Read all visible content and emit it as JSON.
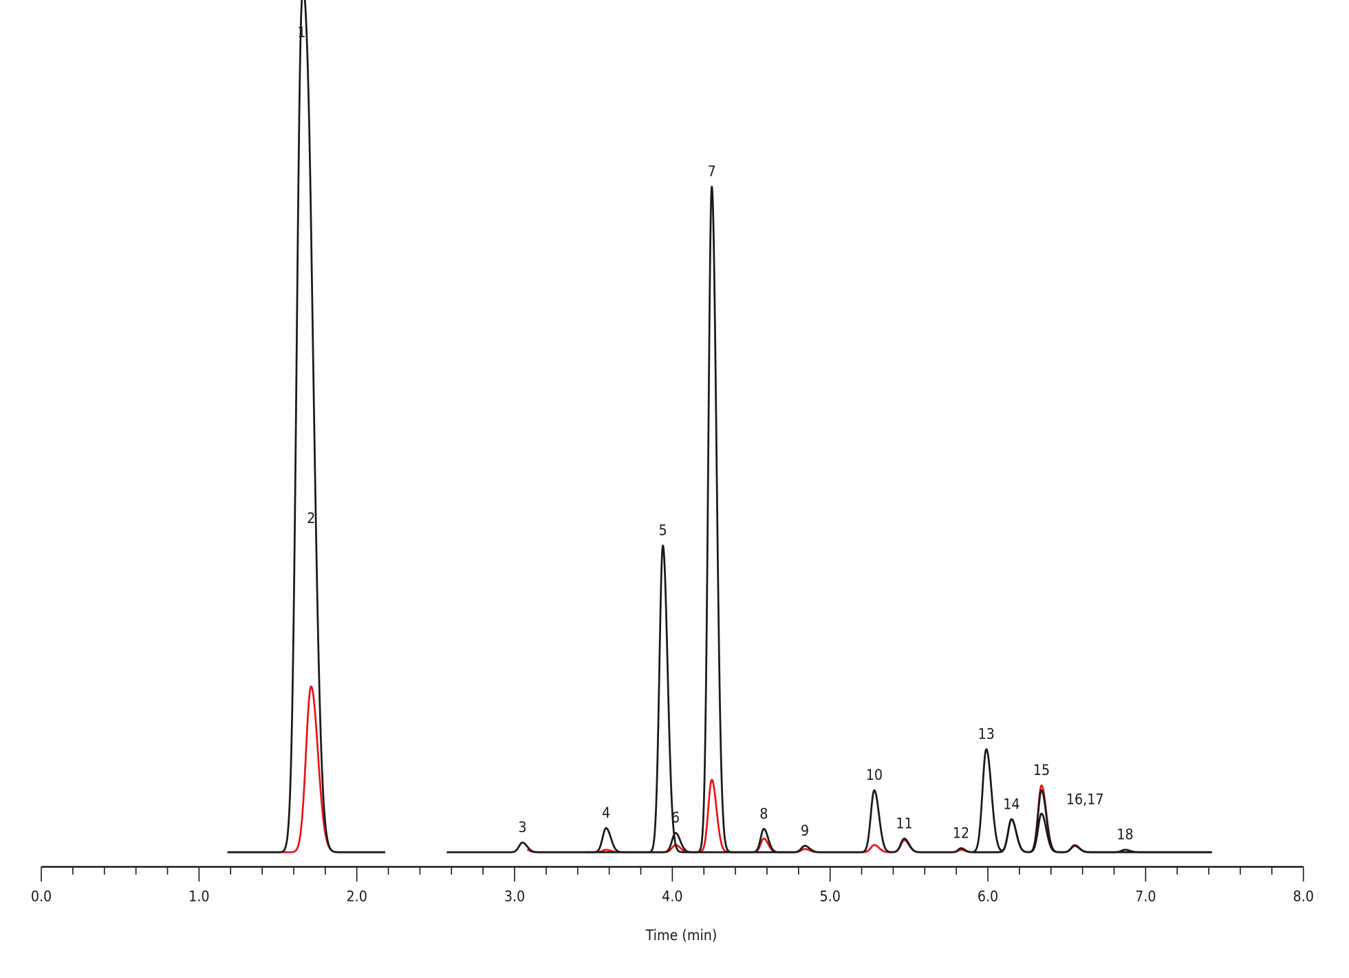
{
  "chart_data": {
    "type": "line",
    "title": "",
    "xlabel": "Time (min)",
    "ylabel": "",
    "xlim": [
      0,
      8
    ],
    "ylim": [
      0,
      100
    ],
    "x_ticks": [
      "0.0",
      "1.0",
      "2.0",
      "3.0",
      "4.0",
      "5.0",
      "6.0",
      "7.0",
      "8.0"
    ],
    "minor_tick_step": 0.2,
    "grid": false,
    "colors": {
      "black_trace": "#1a1a1a",
      "red_trace": "#e8151b"
    },
    "peak_labels": [
      {
        "label": "1",
        "time": 1.65,
        "height": 100
      },
      {
        "label": "2",
        "time": 1.71,
        "height": 39.6
      },
      {
        "label": "3",
        "time": 3.05,
        "height": 1.2
      },
      {
        "label": "4",
        "time": 3.58,
        "height": 3.0
      },
      {
        "label": "5",
        "time": 3.94,
        "height": 38.1
      },
      {
        "label": "6",
        "time": 4.02,
        "height": 2.4
      },
      {
        "label": "7",
        "time": 4.25,
        "height": 82.7
      },
      {
        "label": "8",
        "time": 4.58,
        "height": 2.9
      },
      {
        "label": "9",
        "time": 4.84,
        "height": 0.8
      },
      {
        "label": "10",
        "time": 5.28,
        "height": 7.7
      },
      {
        "label": "11",
        "time": 5.47,
        "height": 1.7
      },
      {
        "label": "12",
        "time": 5.83,
        "height": 0.5
      },
      {
        "label": "13",
        "time": 5.99,
        "height": 12.8
      },
      {
        "label": "14",
        "time": 6.15,
        "height": 4.1
      },
      {
        "label": "15",
        "time": 6.34,
        "height": 8.3
      },
      {
        "label": "16,17",
        "time": 6.55,
        "height": 3.6
      },
      {
        "label": "18",
        "time": 6.87,
        "height": 0.3
      }
    ],
    "series": [
      {
        "color": "black",
        "range": [
          1.18,
          2.18
        ],
        "peaks": [
          [
            1.65,
            100,
            0.032
          ],
          [
            1.71,
            39.6,
            0.03
          ]
        ]
      },
      {
        "color": "red",
        "range": [
          1.18,
          2.18
        ],
        "peaks": [
          [
            1.71,
            20.6,
            0.032
          ]
        ]
      },
      {
        "color": "black",
        "range": [
          2.57,
          7.42
        ],
        "peaks": [
          [
            3.05,
            1.2,
            0.022
          ],
          [
            3.94,
            38.1,
            0.022
          ],
          [
            4.25,
            82.7,
            0.022
          ],
          [
            4.84,
            0.8,
            0.022
          ],
          [
            5.28,
            7.7,
            0.022
          ],
          [
            5.47,
            1.7,
            0.022
          ],
          [
            5.83,
            0.5,
            0.018
          ],
          [
            5.99,
            12.8,
            0.024
          ],
          [
            6.15,
            4.1,
            0.022
          ],
          [
            6.34,
            7.7,
            0.022
          ],
          [
            6.55,
            0.8,
            0.022
          ],
          [
            6.87,
            0.3,
            0.022
          ]
        ]
      },
      {
        "color": "black",
        "range": [
          3.45,
          4.78
        ],
        "peaks": [
          [
            3.58,
            3.0,
            0.022
          ],
          [
            4.02,
            2.4,
            0.022
          ],
          [
            4.58,
            2.9,
            0.02
          ]
        ]
      },
      {
        "color": "black",
        "range": [
          5.9,
          7.42
        ],
        "peaks": [
          [
            6.15,
            4.1,
            0.022
          ],
          [
            6.34,
            4.8,
            0.022
          ],
          [
            6.55,
            0.8,
            0.022
          ]
        ]
      },
      {
        "color": "red",
        "range": [
          3.08,
          7.42
        ],
        "peaks": [
          [
            3.05,
            0.6,
            0.022
          ],
          [
            3.58,
            0.3,
            0.022
          ],
          [
            4.02,
            0.9,
            0.022
          ],
          [
            4.25,
            9.0,
            0.022
          ],
          [
            4.58,
            1.7,
            0.02
          ],
          [
            4.84,
            0.4,
            0.022
          ],
          [
            5.28,
            0.9,
            0.022
          ],
          [
            5.47,
            1.5,
            0.022
          ],
          [
            5.83,
            0.3,
            0.018
          ],
          [
            6.15,
            4.1,
            0.022
          ],
          [
            6.34,
            8.3,
            0.022
          ],
          [
            6.55,
            0.9,
            0.022
          ],
          [
            6.87,
            0.3,
            0.022
          ]
        ]
      }
    ]
  }
}
